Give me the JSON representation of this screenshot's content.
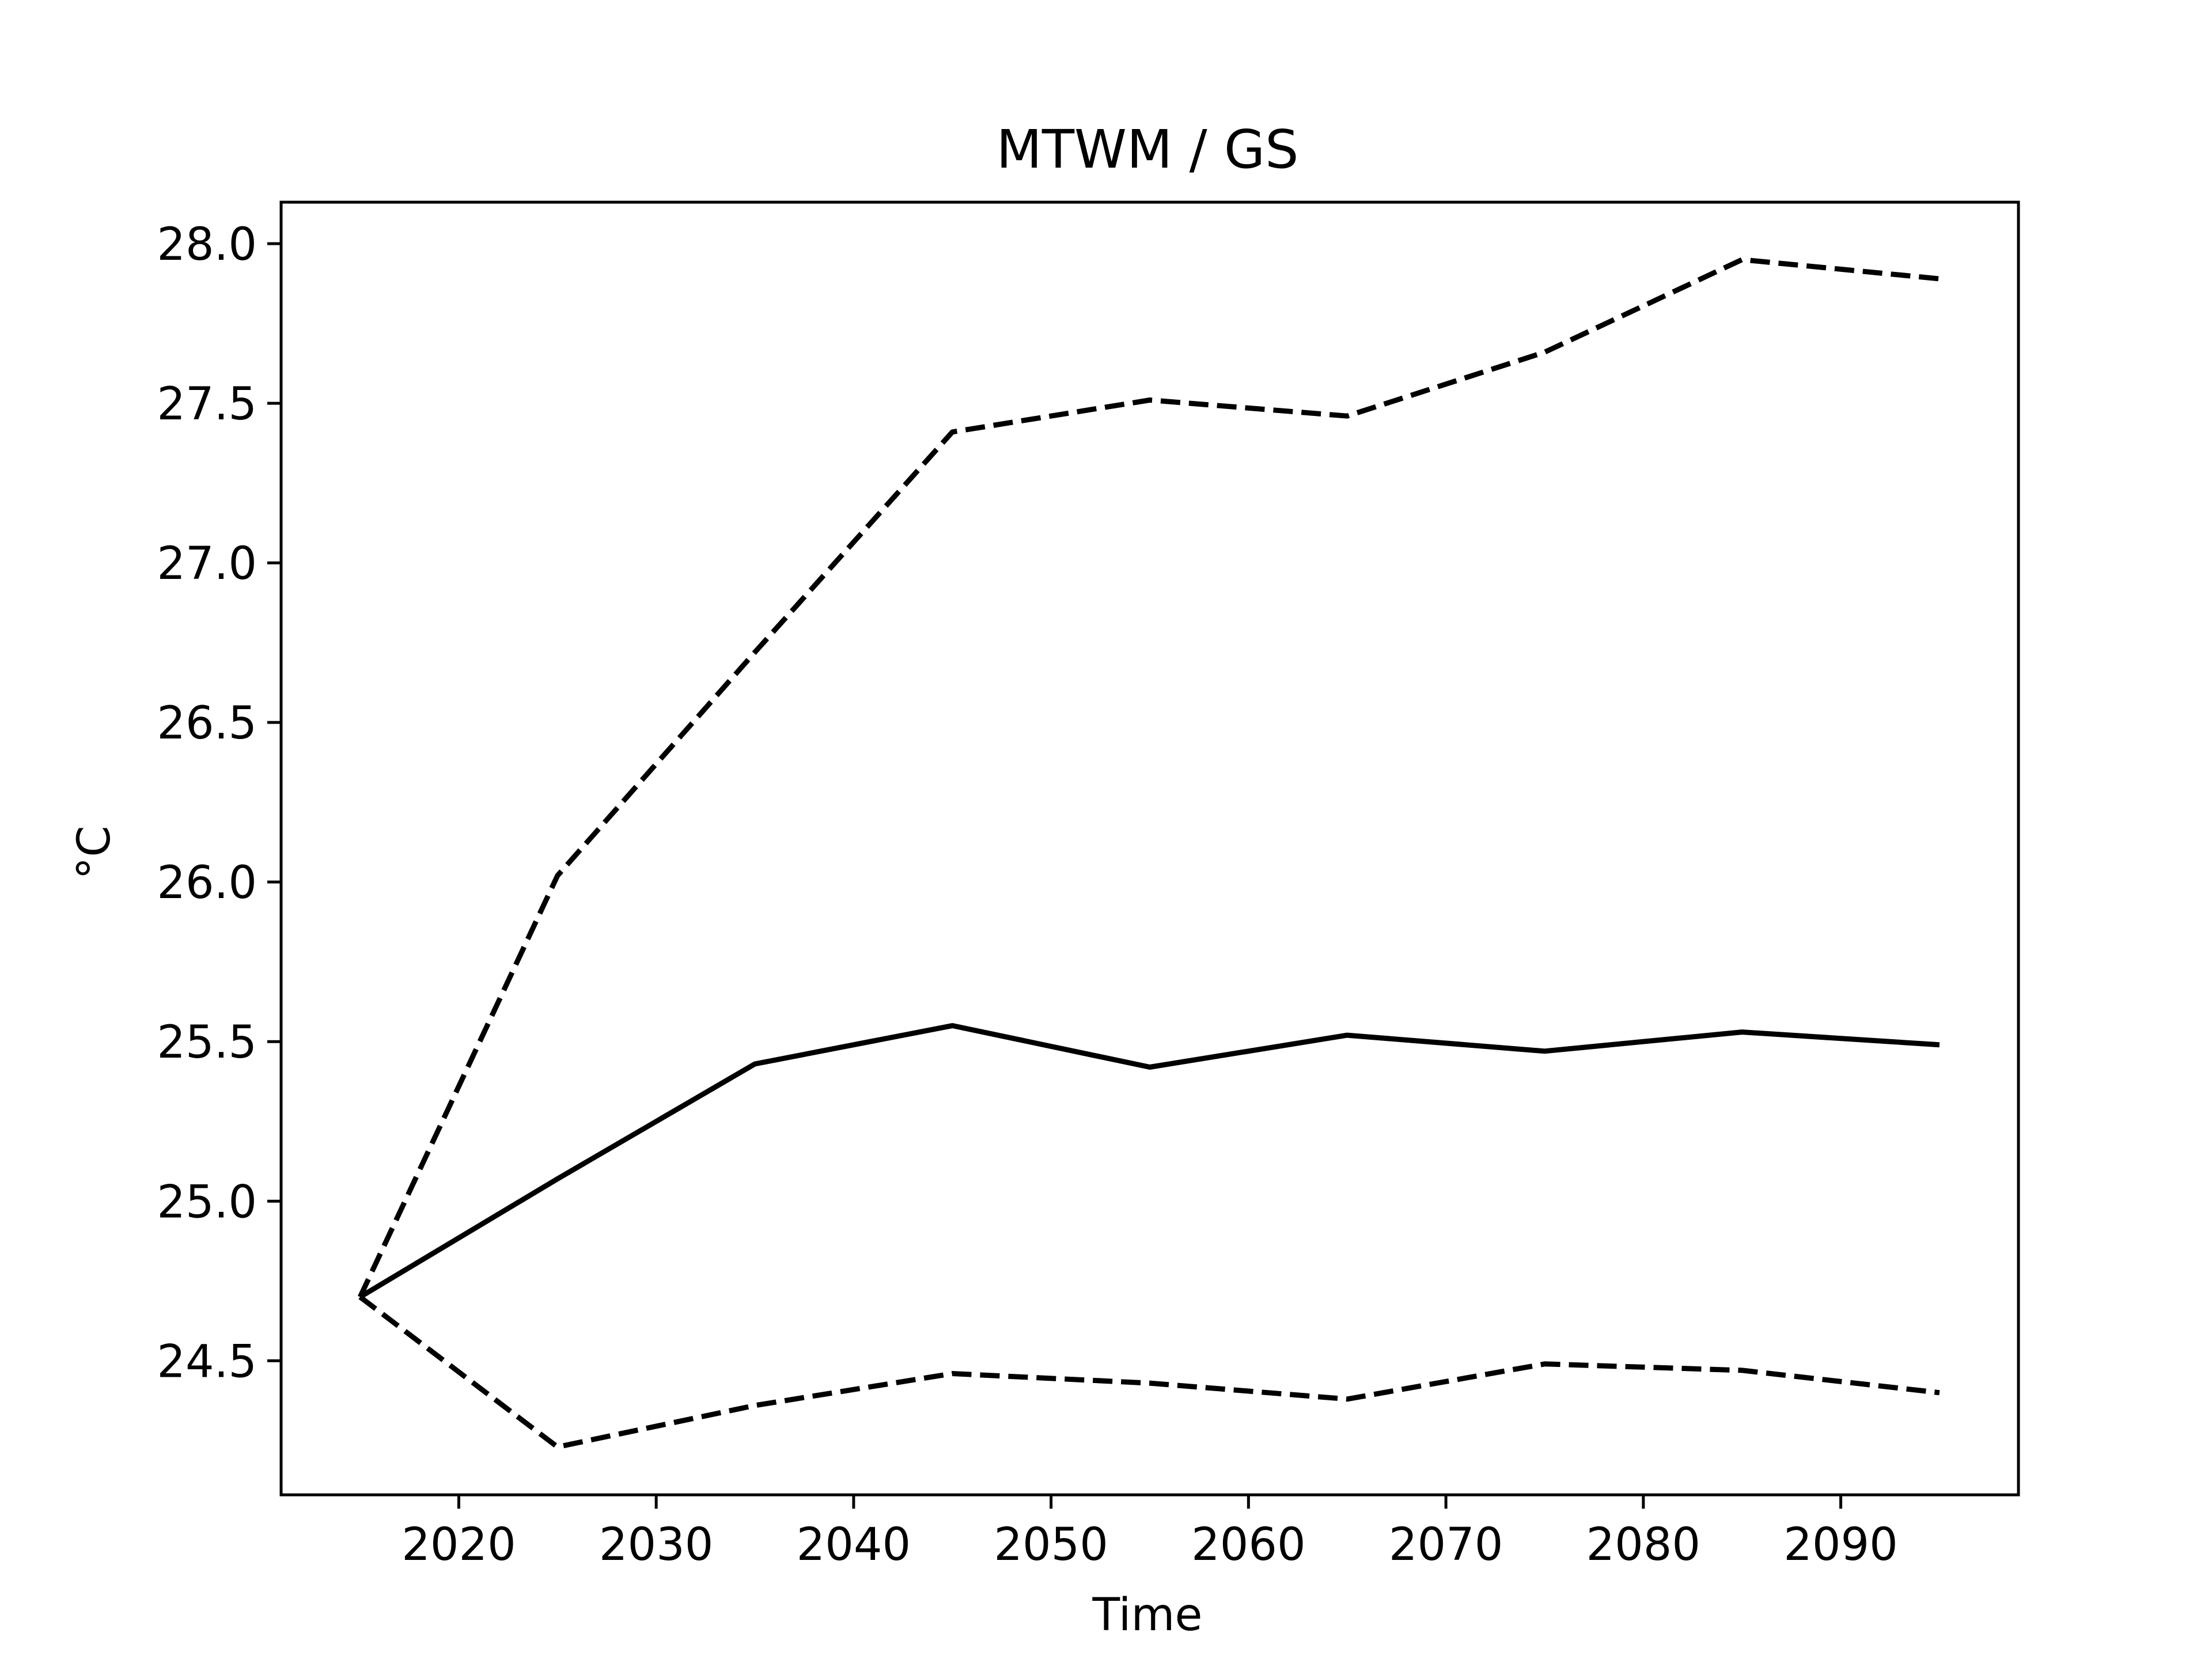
{
  "chart_data": {
    "type": "line",
    "title": "MTWM / GS",
    "xlabel": "Time",
    "ylabel": "°C",
    "xlim": [
      2011,
      2099
    ],
    "ylim": [
      24.08,
      28.13
    ],
    "x_ticks": [
      2020,
      2030,
      2040,
      2050,
      2060,
      2070,
      2080,
      2090
    ],
    "y_ticks": [
      24.5,
      25.0,
      25.5,
      26.0,
      26.5,
      27.0,
      27.5,
      28.0
    ],
    "y_tick_labels": [
      "24.5",
      "25.0",
      "25.5",
      "26.0",
      "26.5",
      "27.0",
      "27.5",
      "28.0"
    ],
    "grid": false,
    "legend": "none",
    "x": [
      2015,
      2025,
      2035,
      2045,
      2055,
      2065,
      2075,
      2085,
      2095
    ],
    "series": [
      {
        "style": "solid",
        "color": "#000000",
        "values": [
          24.7,
          25.07,
          25.43,
          25.55,
          25.42,
          25.52,
          25.47,
          25.53,
          25.49
        ]
      },
      {
        "style": "dashed",
        "color": "#000000",
        "values": [
          24.7,
          26.02,
          26.72,
          27.41,
          27.51,
          27.46,
          27.66,
          27.95,
          27.89
        ]
      },
      {
        "style": "dashed",
        "color": "#000000",
        "values": [
          24.7,
          24.23,
          24.36,
          24.46,
          24.43,
          24.38,
          24.49,
          24.47,
          24.4
        ]
      }
    ]
  }
}
